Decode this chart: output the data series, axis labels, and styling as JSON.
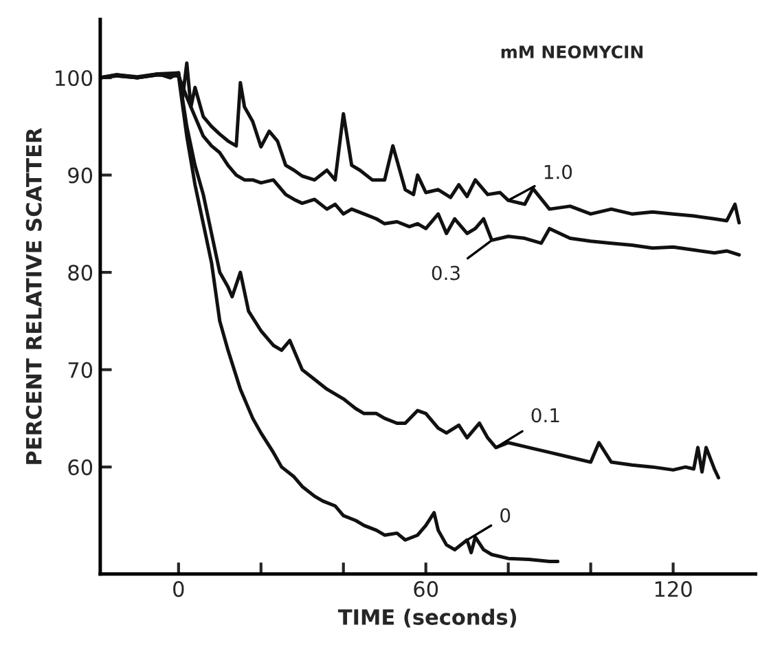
{
  "chart_data": {
    "type": "line",
    "xlabel": "TIME (seconds)",
    "ylabel": "PERCENT RELATIVE SCATTER",
    "legend_title": "mM NEOMYCIN",
    "xlim": [
      -19,
      140
    ],
    "ylim": [
      49,
      106
    ],
    "xticks": [
      0,
      {
        "value": 20,
        "label": null
      },
      {
        "value": 40,
        "label": null
      },
      60,
      {
        "value": 80,
        "label": null
      },
      {
        "value": 100,
        "label": null
      },
      120
    ],
    "yticks": [
      60,
      70,
      80,
      90,
      100
    ],
    "grid": false,
    "legend": false,
    "marker": "none",
    "line_style": "solid",
    "series": [
      {
        "name": "1.0",
        "color": "#111111",
        "x": [
          -19,
          -15,
          -10,
          -5,
          -2,
          0,
          1,
          2,
          3,
          4,
          6,
          8,
          10,
          12,
          14,
          15,
          16,
          18,
          20,
          22,
          24,
          26,
          28,
          30,
          33,
          36,
          38,
          40,
          42,
          44,
          47,
          50,
          52,
          55,
          57,
          58,
          60,
          63,
          66,
          68,
          70,
          72,
          75,
          78,
          80,
          84,
          86,
          90,
          95,
          100,
          105,
          110,
          115,
          120,
          125,
          130,
          133,
          135,
          136
        ],
        "values": [
          100,
          100.3,
          100,
          100.4,
          100,
          100.5,
          98,
          101.5,
          97,
          99,
          96,
          95,
          94.2,
          93.5,
          93,
          99.5,
          97,
          95.5,
          92.9,
          94.5,
          93.5,
          91,
          90.5,
          89.9,
          89.5,
          90.5,
          89.5,
          96.3,
          91,
          90.5,
          89.5,
          89.5,
          93,
          88.5,
          88,
          90,
          88.2,
          88.5,
          87.7,
          89,
          87.8,
          89.5,
          88,
          88.2,
          87.4,
          87,
          88.6,
          86.5,
          86.8,
          86,
          86.5,
          86,
          86.2,
          86,
          85.8,
          85.5,
          85.3,
          87,
          85.1
        ]
      },
      {
        "name": "0.3",
        "color": "#111111",
        "x": [
          -19,
          -15,
          -10,
          -5,
          0,
          2,
          4,
          6,
          8,
          10,
          12,
          14,
          16,
          18,
          20,
          23,
          26,
          28,
          30,
          33,
          36,
          38,
          40,
          42,
          45,
          48,
          50,
          53,
          56,
          58,
          60,
          63,
          65,
          67,
          70,
          72,
          74,
          76,
          80,
          84,
          88,
          90,
          95,
          100,
          105,
          110,
          115,
          120,
          125,
          130,
          133,
          136
        ],
        "values": [
          100,
          100.2,
          100,
          100.3,
          100.2,
          98,
          96,
          94,
          93,
          92.3,
          91,
          90,
          89.5,
          89.5,
          89.2,
          89.5,
          88,
          87.5,
          87.1,
          87.5,
          86.5,
          87,
          86,
          86.5,
          86,
          85.5,
          85,
          85.2,
          84.7,
          85,
          84.5,
          86,
          84,
          85.5,
          84,
          84.5,
          85.5,
          83.3,
          83.7,
          83.5,
          83,
          84.5,
          83.5,
          83.2,
          83,
          82.8,
          82.5,
          82.6,
          82.3,
          82,
          82.2,
          81.8
        ]
      },
      {
        "name": "0.1",
        "color": "#111111",
        "x": [
          -19,
          -15,
          -10,
          -5,
          0,
          2,
          4,
          6,
          8,
          10,
          12,
          13,
          15,
          17,
          20,
          23,
          25,
          27,
          30,
          33,
          36,
          40,
          43,
          45,
          48,
          50,
          53,
          55,
          58,
          60,
          63,
          65,
          68,
          70,
          73,
          75,
          77,
          80,
          85,
          90,
          95,
          100,
          102,
          105,
          110,
          115,
          120,
          123,
          125,
          126,
          127,
          128,
          130,
          131
        ],
        "values": [
          100,
          100.3,
          100.1,
          100.4,
          100.5,
          95,
          91,
          88,
          84,
          80,
          78.5,
          77.5,
          80,
          76,
          74,
          72.5,
          72,
          73,
          70,
          69,
          68,
          67,
          66,
          65.5,
          65.5,
          65,
          64.5,
          64.5,
          65.8,
          65.5,
          64,
          63.5,
          64.3,
          63,
          64.5,
          63,
          62,
          62.5,
          62,
          61.5,
          61,
          60.5,
          62.5,
          60.5,
          60.2,
          60,
          59.7,
          60,
          59.8,
          62,
          59.5,
          62,
          59.8,
          58.9
        ]
      },
      {
        "name": "0",
        "color": "#111111",
        "x": [
          -19,
          -15,
          -10,
          -5,
          0,
          2,
          4,
          6,
          8,
          10,
          12,
          15,
          18,
          20,
          23,
          25,
          28,
          30,
          33,
          35,
          38,
          40,
          43,
          45,
          48,
          50,
          53,
          55,
          58,
          60,
          62,
          63,
          65,
          67,
          70,
          71,
          72,
          74,
          76,
          80,
          85,
          90,
          92
        ],
        "values": [
          100,
          100.2,
          100,
          100.3,
          100.2,
          94,
          89,
          85,
          81,
          75,
          72,
          68,
          65,
          63.5,
          61.5,
          60,
          59,
          58,
          57,
          56.5,
          56,
          55,
          54.5,
          54,
          53.5,
          53,
          53.2,
          52.5,
          53,
          54,
          55.3,
          53.5,
          52,
          51.5,
          52.5,
          51.2,
          52.8,
          51.5,
          51,
          50.6,
          50.5,
          50.3,
          50.3
        ]
      }
    ]
  }
}
